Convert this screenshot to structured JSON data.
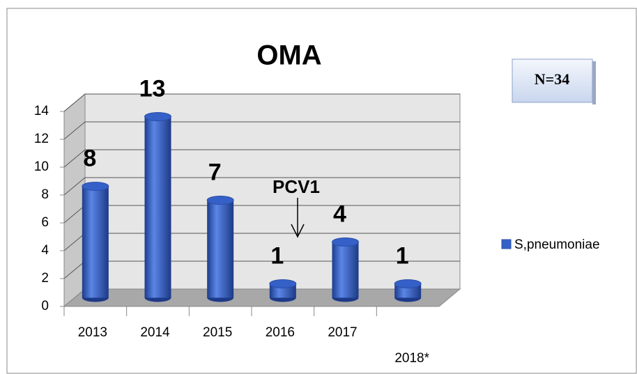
{
  "chart_data": {
    "type": "bar3d",
    "title": "OMA",
    "categories": [
      "2013",
      "2014",
      "2015",
      "2016",
      "2017",
      "2018*"
    ],
    "series": [
      {
        "name": "S,pneumoniae",
        "color": "#3560c8",
        "values": [
          8,
          13,
          7,
          1,
          4,
          1
        ]
      }
    ],
    "ylim": [
      0,
      14
    ],
    "yticks": [
      0,
      2,
      4,
      6,
      8,
      10,
      12,
      14
    ],
    "grid": true,
    "annotations": [
      "PCV1",
      "N=34"
    ],
    "legend": "right"
  }
}
